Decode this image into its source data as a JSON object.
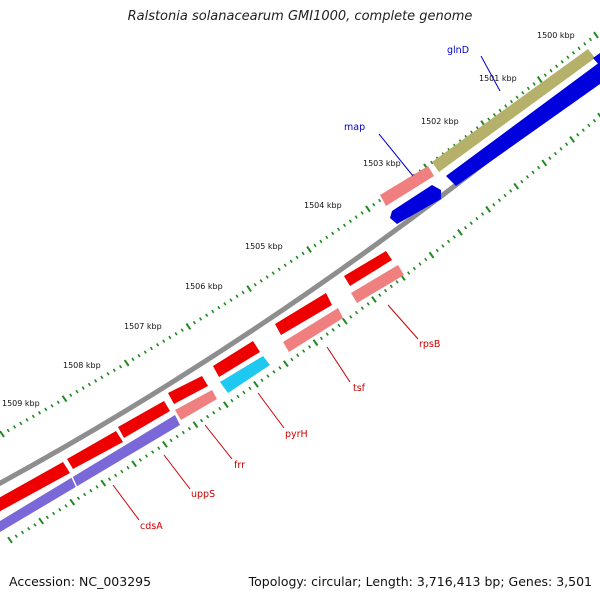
{
  "title": "Ralstonia solanacearum GMI1000, complete genome",
  "footer": {
    "accession": "Accession: NC_003295",
    "summary": "Topology: circular; Length: 3,716,413 bp; Genes: 3,501"
  },
  "colors": {
    "backbone": "#8e8e8e",
    "tick": "#1f8a1f",
    "forward_cds": "#ee0000",
    "forward_cds_light": "#f08080",
    "reverse_cds": "#0000dd",
    "reverse_purple": "#7b68d8",
    "reverse_cyan": "#1ec8f0",
    "olive": "#b5b06a",
    "label_red": "#cc0000",
    "label_blue": "#0000cc"
  },
  "scale_labels": [
    "1500 kbp",
    "1501 kbp",
    "1502 kbp",
    "1503 kbp",
    "1504 kbp",
    "1505 kbp",
    "1506 kbp",
    "1507 kbp",
    "1508 kbp",
    "1509 kbp"
  ],
  "gene_labels": [
    {
      "name": "glnD",
      "color": "label_blue"
    },
    {
      "name": "map",
      "color": "label_blue"
    },
    {
      "name": "rpsB",
      "color": "label_red"
    },
    {
      "name": "tsf",
      "color": "label_red"
    },
    {
      "name": "pyrH",
      "color": "label_red"
    },
    {
      "name": "frr",
      "color": "label_red"
    },
    {
      "name": "uppS",
      "color": "label_red"
    },
    {
      "name": "cdsA",
      "color": "label_red"
    }
  ]
}
